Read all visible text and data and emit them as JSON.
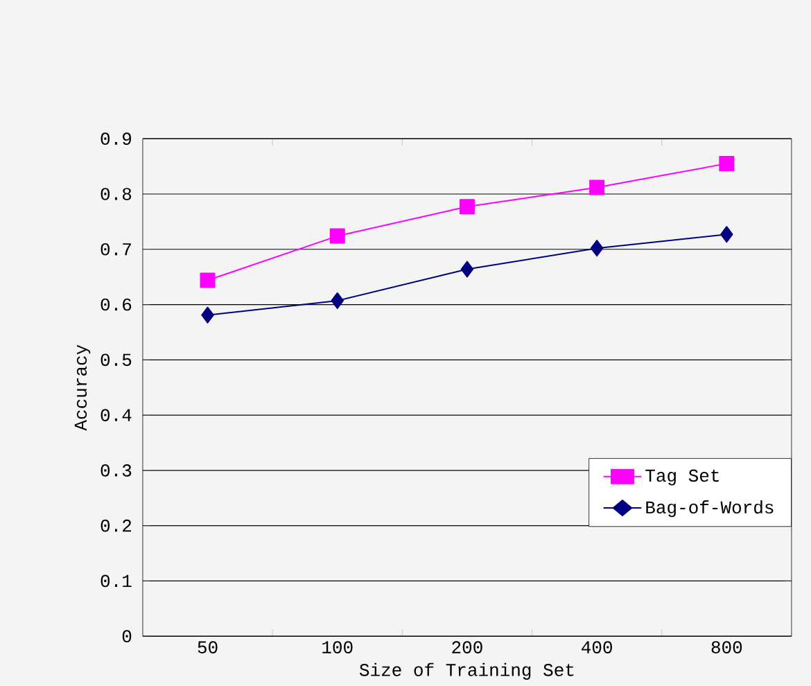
{
  "chart_data": {
    "type": "line",
    "xlabel": "Size of Training Set",
    "ylabel": "Accuracy",
    "categories": [
      "50",
      "100",
      "200",
      "400",
      "800"
    ],
    "series": [
      {
        "name": "Tag Set",
        "color": "#ff00ff",
        "marker": "square",
        "values": [
          0.644,
          0.724,
          0.777,
          0.812,
          0.855
        ]
      },
      {
        "name": "Bag-of-Words",
        "color": "#000080",
        "marker": "diamond",
        "values": [
          0.581,
          0.607,
          0.664,
          0.702,
          0.727
        ]
      }
    ],
    "ylim": [
      0,
      0.9
    ],
    "yticks": [
      0,
      0.1,
      0.2,
      0.3,
      0.4,
      0.5,
      0.6,
      0.7,
      0.8,
      0.9
    ],
    "grid": "y",
    "legend": "right",
    "line_style": "solid"
  }
}
